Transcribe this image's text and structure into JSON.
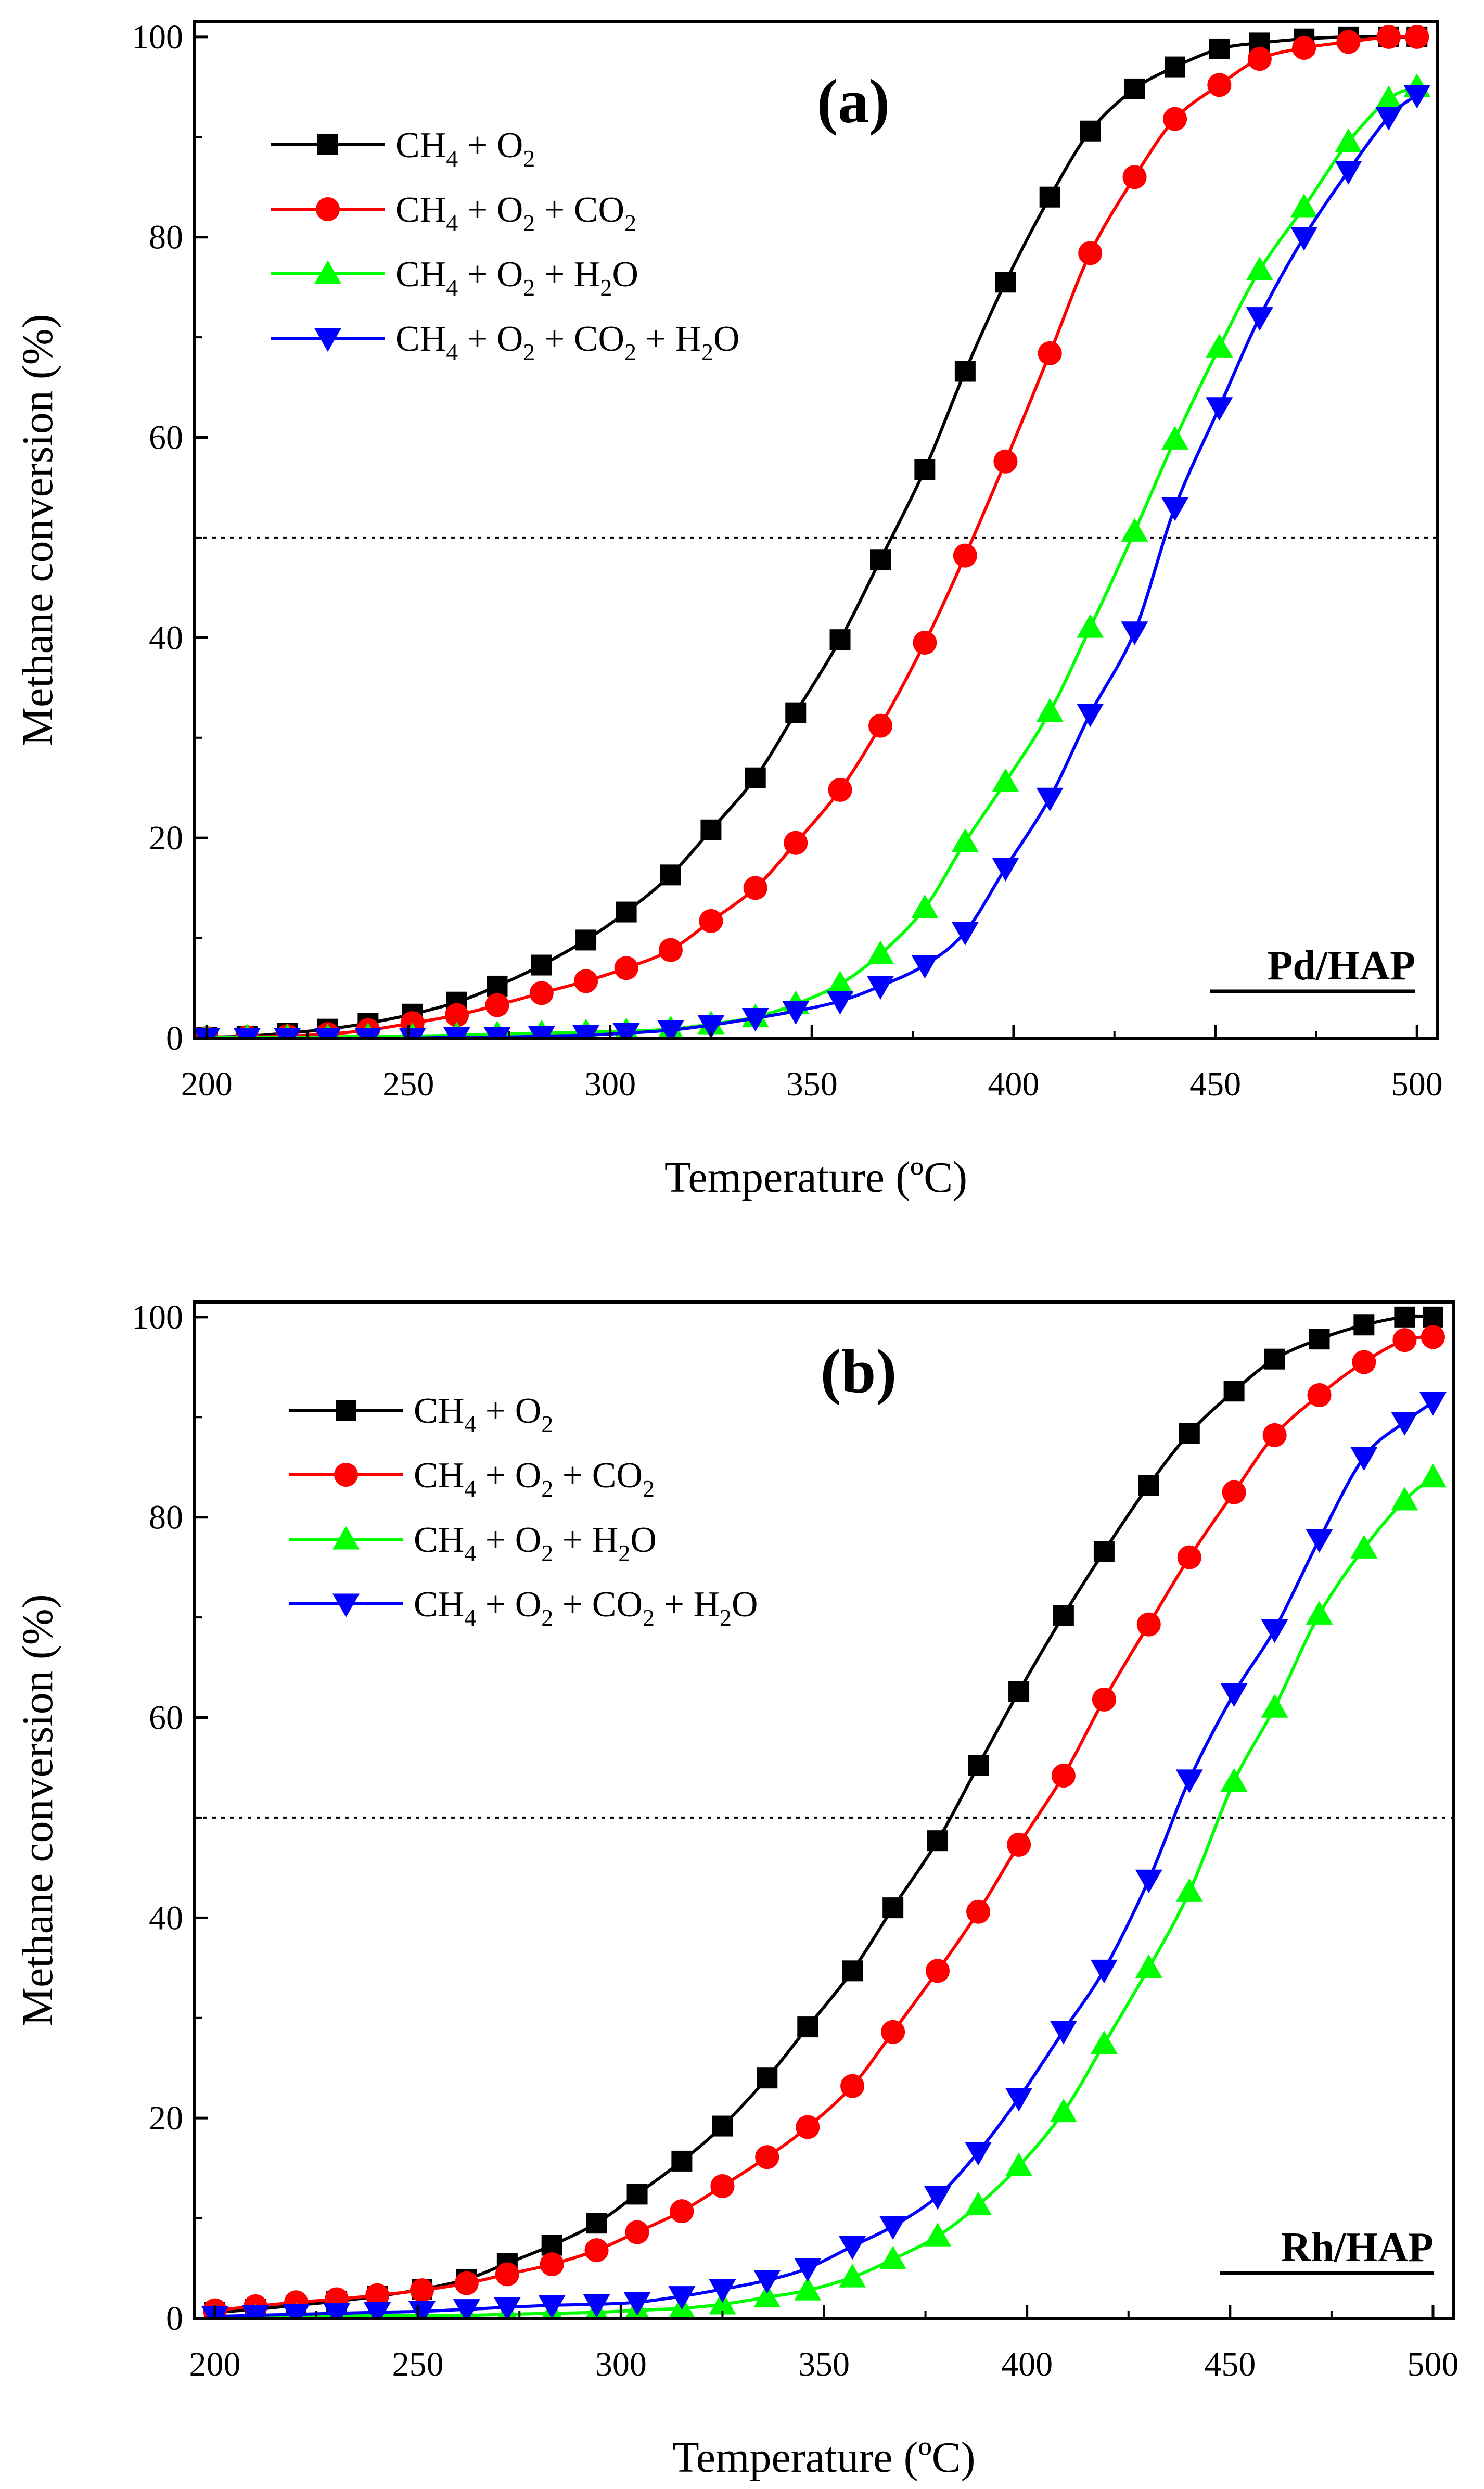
{
  "chart_data": [
    {
      "type": "line",
      "panel_label": "(a)",
      "catalyst": "Pd/HAP",
      "xlabel": "Temperature (ºC)",
      "ylabel": "Methane conversion (%)",
      "xlim": [
        197,
        505
      ],
      "ylim": [
        0,
        101.5
      ],
      "xticks": [
        200,
        250,
        300,
        350,
        400,
        450,
        500
      ],
      "yticks": [
        0,
        20,
        40,
        60,
        80,
        100
      ],
      "reference_line": 50,
      "legend_position": "top-left",
      "series": [
        {
          "name": "CH4 + O2",
          "label_parts": [
            [
              "CH",
              ""
            ],
            [
              "4",
              "sub"
            ],
            [
              " + O",
              ""
            ],
            [
              "2",
              "sub"
            ]
          ],
          "color": "#000000",
          "marker": "square",
          "x": [
            200,
            210,
            220,
            230,
            240,
            251,
            262,
            272,
            283,
            294,
            304,
            315,
            325,
            336,
            346,
            357,
            367,
            378,
            388,
            398,
            409,
            419,
            430,
            440,
            451,
            461,
            472,
            483,
            493,
            500
          ],
          "y": [
            0.1,
            0.2,
            0.5,
            0.9,
            1.5,
            2.4,
            3.6,
            5.2,
            7.3,
            9.8,
            12.6,
            16.3,
            20.8,
            26,
            32.5,
            39.8,
            47.8,
            56.8,
            66.6,
            75.5,
            84,
            90.6,
            94.8,
            97,
            98.8,
            99.4,
            99.8,
            100,
            100,
            100
          ]
        },
        {
          "name": "CH4 + O2 + CO2",
          "label_parts": [
            [
              "CH",
              ""
            ],
            [
              "4",
              "sub"
            ],
            [
              " + O",
              ""
            ],
            [
              "2",
              "sub"
            ],
            [
              " + CO",
              ""
            ],
            [
              "2",
              "sub"
            ]
          ],
          "color": "#ff0000",
          "marker": "circle",
          "x": [
            200,
            210,
            220,
            230,
            240,
            251,
            262,
            272,
            283,
            294,
            304,
            315,
            325,
            336,
            346,
            357,
            367,
            378,
            388,
            398,
            409,
            419,
            430,
            440,
            451,
            461,
            472,
            483,
            493,
            500
          ],
          "y": [
            0,
            0.1,
            0.2,
            0.4,
            0.8,
            1.5,
            2.3,
            3.3,
            4.5,
            5.7,
            7,
            8.8,
            11.7,
            15,
            19.5,
            24.8,
            31.2,
            39.5,
            48.2,
            57.6,
            68.4,
            78.4,
            86,
            91.8,
            95.2,
            97.8,
            98.9,
            99.5,
            100,
            100
          ]
        },
        {
          "name": "CH4 + O2 + H2O",
          "label_parts": [
            [
              "CH",
              ""
            ],
            [
              "4",
              "sub"
            ],
            [
              " + O",
              ""
            ],
            [
              "2",
              "sub"
            ],
            [
              " + H",
              ""
            ],
            [
              "2",
              "sub"
            ],
            [
              "O",
              ""
            ]
          ],
          "color": "#00ff00",
          "marker": "triangle-up",
          "x": [
            200,
            210,
            220,
            230,
            240,
            251,
            262,
            272,
            283,
            294,
            304,
            315,
            325,
            336,
            346,
            357,
            367,
            378,
            388,
            398,
            409,
            419,
            430,
            440,
            451,
            461,
            472,
            483,
            493,
            500
          ],
          "y": [
            0.1,
            0.1,
            0.1,
            0.1,
            0.2,
            0.2,
            0.3,
            0.4,
            0.5,
            0.6,
            0.7,
            0.9,
            1.4,
            2.1,
            3.4,
            5.4,
            8.4,
            13,
            19.6,
            25.6,
            32.6,
            41,
            50.6,
            59.8,
            69,
            76.7,
            83,
            89.5,
            93.8,
            95
          ]
        },
        {
          "name": "CH4 + O2 + CO2 + H2O",
          "label_parts": [
            [
              "CH",
              ""
            ],
            [
              "4",
              "sub"
            ],
            [
              " + O",
              ""
            ],
            [
              "2",
              "sub"
            ],
            [
              " + CO",
              ""
            ],
            [
              "2",
              "sub"
            ],
            [
              " + H",
              ""
            ],
            [
              "2",
              "sub"
            ],
            [
              "O",
              ""
            ]
          ],
          "color": "#0000ff",
          "marker": "triangle-down",
          "x": [
            200,
            210,
            220,
            230,
            240,
            251,
            262,
            272,
            283,
            294,
            304,
            315,
            325,
            336,
            346,
            357,
            367,
            378,
            388,
            398,
            409,
            419,
            430,
            440,
            451,
            461,
            472,
            483,
            493,
            500
          ],
          "y": [
            0,
            0,
            0,
            0,
            0,
            0,
            0.1,
            0.1,
            0.2,
            0.3,
            0.5,
            0.8,
            1.3,
            2,
            2.7,
            3.7,
            5.2,
            7.3,
            10.6,
            17,
            24,
            32.4,
            40.6,
            53,
            63,
            72,
            80,
            86.6,
            92,
            94.2
          ]
        }
      ]
    },
    {
      "type": "line",
      "panel_label": "(b)",
      "catalyst": "Rh/HAP",
      "xlabel": "Temperature (ºC)",
      "ylabel": "Methane conversion (%)",
      "xlim": [
        195,
        505
      ],
      "ylim": [
        0,
        101.5
      ],
      "xticks": [
        200,
        250,
        300,
        350,
        400,
        450,
        500
      ],
      "yticks": [
        0,
        20,
        40,
        60,
        80,
        100
      ],
      "reference_line": 50,
      "legend_position": "top-left",
      "series": [
        {
          "name": "CH4 + O2",
          "label_parts": [
            [
              "CH",
              ""
            ],
            [
              "4",
              "sub"
            ],
            [
              " + O",
              ""
            ],
            [
              "2",
              "sub"
            ]
          ],
          "color": "#000000",
          "marker": "square",
          "x": [
            200,
            210,
            220,
            230,
            240,
            251,
            262,
            272,
            283,
            294,
            304,
            315,
            325,
            336,
            346,
            357,
            367,
            378,
            388,
            398,
            409,
            419,
            430,
            440,
            451,
            461,
            472,
            483,
            493,
            500
          ],
          "y": [
            0.6,
            0.9,
            1.3,
            1.7,
            2.2,
            2.9,
            3.9,
            5.5,
            7.3,
            9.5,
            12.4,
            15.7,
            19.2,
            24,
            29.1,
            34.7,
            41,
            47.7,
            55.2,
            62.6,
            70.2,
            76.6,
            83.2,
            88.4,
            92.6,
            95.8,
            97.8,
            99.2,
            100,
            100
          ]
        },
        {
          "name": "CH4 + O2 + CO2",
          "label_parts": [
            [
              "CH",
              ""
            ],
            [
              "4",
              "sub"
            ],
            [
              " + O",
              ""
            ],
            [
              "2",
              "sub"
            ],
            [
              " + CO",
              ""
            ],
            [
              "2",
              "sub"
            ]
          ],
          "color": "#ff0000",
          "marker": "circle",
          "x": [
            200,
            210,
            220,
            230,
            240,
            251,
            262,
            272,
            283,
            294,
            304,
            315,
            325,
            336,
            346,
            357,
            367,
            378,
            388,
            398,
            409,
            419,
            430,
            440,
            451,
            461,
            472,
            483,
            493,
            500
          ],
          "y": [
            0.8,
            1.2,
            1.6,
            1.9,
            2.3,
            2.8,
            3.5,
            4.4,
            5.4,
            6.8,
            8.6,
            10.7,
            13.2,
            16.1,
            19.1,
            23.2,
            28.6,
            34.7,
            40.6,
            47.3,
            54.2,
            61.8,
            69.3,
            76,
            82.5,
            88.2,
            92.2,
            95.5,
            97.7,
            98
          ]
        },
        {
          "name": "CH4 + O2 + H2O",
          "label_parts": [
            [
              "CH",
              ""
            ],
            [
              "4",
              "sub"
            ],
            [
              " + O",
              ""
            ],
            [
              "2",
              "sub"
            ],
            [
              " + H",
              ""
            ],
            [
              "2",
              "sub"
            ],
            [
              "O",
              ""
            ]
          ],
          "color": "#00ff00",
          "marker": "triangle-up",
          "x": [
            200,
            210,
            220,
            230,
            240,
            251,
            262,
            272,
            283,
            294,
            304,
            315,
            325,
            336,
            346,
            357,
            367,
            378,
            388,
            398,
            409,
            419,
            430,
            440,
            451,
            461,
            472,
            483,
            493,
            500
          ],
          "y": [
            0.1,
            0.1,
            0.2,
            0.2,
            0.3,
            0.3,
            0.3,
            0.4,
            0.5,
            0.6,
            0.8,
            1,
            1.4,
            2.1,
            2.8,
            4.1,
            5.9,
            8.2,
            11.3,
            15.2,
            20.6,
            27.4,
            35,
            42.6,
            53.6,
            61,
            70.3,
            76.9,
            81.7,
            84
          ]
        },
        {
          "name": "CH4 + O2 + CO2 + H2O",
          "label_parts": [
            [
              "CH",
              ""
            ],
            [
              "4",
              "sub"
            ],
            [
              " + O",
              ""
            ],
            [
              "2",
              "sub"
            ],
            [
              " + CO",
              ""
            ],
            [
              "2",
              "sub"
            ],
            [
              " + H",
              ""
            ],
            [
              "2",
              "sub"
            ],
            [
              "O",
              ""
            ]
          ],
          "color": "#0000ff",
          "marker": "triangle-down",
          "x": [
            200,
            210,
            220,
            230,
            240,
            251,
            262,
            272,
            283,
            294,
            304,
            315,
            325,
            336,
            346,
            357,
            367,
            378,
            388,
            398,
            409,
            419,
            430,
            440,
            451,
            461,
            472,
            483,
            493,
            500
          ],
          "y": [
            0.2,
            0.3,
            0.4,
            0.5,
            0.6,
            0.7,
            0.9,
            1.1,
            1.3,
            1.4,
            1.6,
            2.2,
            2.9,
            3.8,
            5,
            7.2,
            9.2,
            12.2,
            16.6,
            22,
            28.7,
            34.8,
            43.8,
            53.8,
            62.4,
            68.8,
            77.8,
            86,
            89.5,
            91.5
          ]
        }
      ]
    }
  ]
}
